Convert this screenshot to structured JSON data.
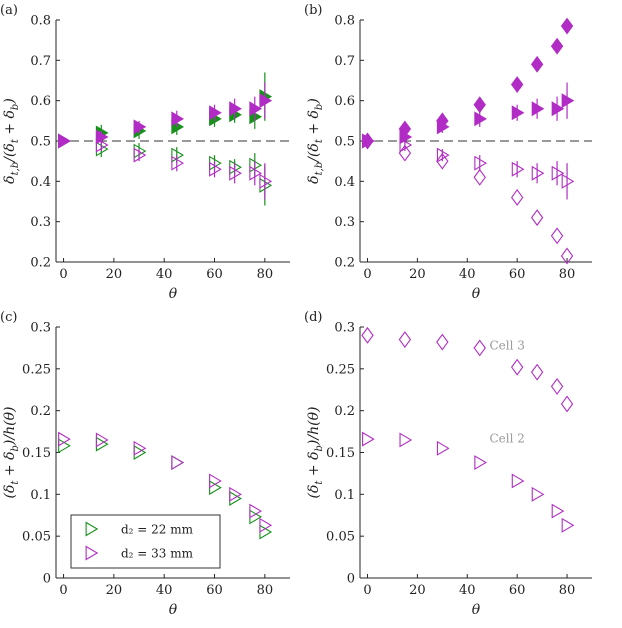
{
  "colors": {
    "green": "#18911c",
    "magenta": "#b12cc4",
    "axis": "#262626",
    "annotation": "#9a9a9a"
  },
  "legend": {
    "entries": [
      {
        "label": "d₂ = 22 mm",
        "color": "#18911c"
      },
      {
        "label": "d₂ = 33 mm",
        "color": "#b12cc4"
      }
    ]
  },
  "chart_data": [
    {
      "type": "scatter",
      "panel_label": "(a)",
      "xlabel": "θ",
      "ylabel": "δt,b/(δt + δb)",
      "xlim": [
        -3,
        90
      ],
      "ylim": [
        0.2,
        0.8
      ],
      "xticks": [
        0,
        20,
        40,
        60,
        80
      ],
      "yticks": [
        0.2,
        0.3,
        0.4,
        0.5,
        0.6,
        0.7,
        0.8
      ],
      "reference_line": {
        "y": 0.5,
        "style": "dashed"
      },
      "series": [
        {
          "name": "d2=22mm top",
          "color": "#18911c",
          "marker": "tri",
          "fill": true,
          "x": [
            0,
            15,
            30,
            45,
            60,
            68,
            76,
            80
          ],
          "y": [
            0.5,
            0.52,
            0.525,
            0.535,
            0.555,
            0.565,
            0.56,
            0.61
          ],
          "err": [
            0,
            0.02,
            0.02,
            0.02,
            0.02,
            0.02,
            0.03,
            0.06
          ]
        },
        {
          "name": "d2=22mm bottom",
          "color": "#18911c",
          "marker": "tri",
          "fill": false,
          "x": [
            0,
            15,
            30,
            45,
            60,
            68,
            76,
            80
          ],
          "y": [
            0.5,
            0.48,
            0.475,
            0.465,
            0.445,
            0.435,
            0.44,
            0.39
          ],
          "err": [
            0,
            0.02,
            0.02,
            0.02,
            0.02,
            0.02,
            0.03,
            0.05
          ]
        },
        {
          "name": "d2=33mm top",
          "color": "#b12cc4",
          "marker": "tri",
          "fill": true,
          "x": [
            0,
            15,
            30,
            45,
            60,
            68,
            76,
            80
          ],
          "y": [
            0.5,
            0.51,
            0.535,
            0.555,
            0.57,
            0.58,
            0.58,
            0.6
          ],
          "err": [
            0,
            0.015,
            0.015,
            0.02,
            0.02,
            0.025,
            0.03,
            0.045
          ]
        },
        {
          "name": "d2=33mm bottom",
          "color": "#b12cc4",
          "marker": "tri",
          "fill": false,
          "x": [
            0,
            15,
            30,
            45,
            60,
            68,
            76,
            80
          ],
          "y": [
            0.5,
            0.49,
            0.465,
            0.445,
            0.43,
            0.42,
            0.42,
            0.4
          ],
          "err": [
            0,
            0.015,
            0.015,
            0.02,
            0.02,
            0.025,
            0.03,
            0.045
          ]
        }
      ]
    },
    {
      "type": "scatter",
      "panel_label": "(b)",
      "xlabel": "θ",
      "ylabel": "δt,b/(δt + δb)",
      "xlim": [
        -3,
        90
      ],
      "ylim": [
        0.2,
        0.8
      ],
      "xticks": [
        0,
        20,
        40,
        60,
        80
      ],
      "yticks": [
        0.2,
        0.3,
        0.4,
        0.5,
        0.6,
        0.7,
        0.8
      ],
      "reference_line": {
        "y": 0.5,
        "style": "dashed"
      },
      "series": [
        {
          "name": "Cell 3 top",
          "color": "#b12cc4",
          "marker": "diamond",
          "fill": true,
          "x": [
            0,
            15,
            30,
            45,
            60,
            68,
            76,
            80
          ],
          "y": [
            0.5,
            0.53,
            0.55,
            0.59,
            0.64,
            0.69,
            0.735,
            0.785
          ],
          "err": [
            0,
            0,
            0,
            0,
            0,
            0,
            0,
            0
          ]
        },
        {
          "name": "Cell 3 bottom",
          "color": "#b12cc4",
          "marker": "diamond",
          "fill": false,
          "x": [
            0,
            15,
            30,
            45,
            60,
            68,
            76,
            80
          ],
          "y": [
            0.5,
            0.47,
            0.45,
            0.41,
            0.36,
            0.31,
            0.265,
            0.215
          ],
          "err": [
            0,
            0,
            0,
            0,
            0,
            0,
            0,
            0
          ]
        },
        {
          "name": "Cell 2 top",
          "color": "#b12cc4",
          "marker": "tri",
          "fill": true,
          "x": [
            0,
            15,
            30,
            45,
            60,
            68,
            76,
            80
          ],
          "y": [
            0.5,
            0.51,
            0.535,
            0.555,
            0.57,
            0.58,
            0.58,
            0.6
          ],
          "err": [
            0,
            0.015,
            0.015,
            0.02,
            0.02,
            0.025,
            0.03,
            0.045
          ]
        },
        {
          "name": "Cell 2 bottom",
          "color": "#b12cc4",
          "marker": "tri",
          "fill": false,
          "x": [
            0,
            15,
            30,
            45,
            60,
            68,
            76,
            80
          ],
          "y": [
            0.5,
            0.49,
            0.465,
            0.445,
            0.43,
            0.42,
            0.42,
            0.4
          ],
          "err": [
            0,
            0.015,
            0.015,
            0.02,
            0.02,
            0.025,
            0.03,
            0.045
          ]
        }
      ]
    },
    {
      "type": "scatter",
      "panel_label": "(c)",
      "xlabel": "θ",
      "ylabel": "(δt + δb)/h(θ)",
      "xlim": [
        -3,
        90
      ],
      "ylim": [
        0,
        0.3
      ],
      "xticks": [
        0,
        20,
        40,
        60,
        80
      ],
      "yticks": [
        0,
        0.05,
        0.1,
        0.15,
        0.2,
        0.25,
        0.3
      ],
      "series": [
        {
          "name": "d2 = 22 mm",
          "color": "#18911c",
          "marker": "tri",
          "fill": false,
          "x": [
            0,
            15,
            30,
            45,
            60,
            68,
            76,
            80
          ],
          "y": [
            0.158,
            0.16,
            0.15,
            0.138,
            0.108,
            0.095,
            0.073,
            0.055
          ],
          "err": [
            0,
            0,
            0,
            0,
            0,
            0,
            0,
            0
          ]
        },
        {
          "name": "d2 = 33 mm",
          "color": "#b12cc4",
          "marker": "tri",
          "fill": false,
          "x": [
            0,
            15,
            30,
            45,
            60,
            68,
            76,
            80
          ],
          "y": [
            0.166,
            0.165,
            0.155,
            0.138,
            0.116,
            0.1,
            0.08,
            0.063
          ],
          "err": [
            0,
            0,
            0,
            0,
            0,
            0,
            0,
            0
          ]
        }
      ]
    },
    {
      "type": "scatter",
      "panel_label": "(d)",
      "xlabel": "θ",
      "ylabel": "(δt + δb)/h(θ)",
      "xlim": [
        -3,
        90
      ],
      "ylim": [
        0,
        0.3
      ],
      "xticks": [
        0,
        20,
        40,
        60,
        80
      ],
      "yticks": [
        0,
        0.05,
        0.1,
        0.15,
        0.2,
        0.25,
        0.3
      ],
      "annotations": [
        {
          "text": "Cell 3",
          "x": 56,
          "y": 0.273
        },
        {
          "text": "Cell 2",
          "x": 56,
          "y": 0.162
        }
      ],
      "series": [
        {
          "name": "Cell 3",
          "color": "#b12cc4",
          "marker": "diamond",
          "fill": false,
          "x": [
            0,
            15,
            30,
            45,
            60,
            68,
            76,
            80
          ],
          "y": [
            0.29,
            0.285,
            0.282,
            0.275,
            0.252,
            0.246,
            0.229,
            0.208
          ],
          "err": [
            0,
            0,
            0,
            0,
            0,
            0,
            0,
            0
          ]
        },
        {
          "name": "Cell 2",
          "color": "#b12cc4",
          "marker": "tri",
          "fill": false,
          "x": [
            0,
            15,
            30,
            45,
            60,
            68,
            76,
            80
          ],
          "y": [
            0.166,
            0.165,
            0.155,
            0.138,
            0.116,
            0.1,
            0.08,
            0.063
          ],
          "err": [
            0,
            0,
            0,
            0,
            0,
            0,
            0,
            0
          ]
        }
      ]
    }
  ]
}
